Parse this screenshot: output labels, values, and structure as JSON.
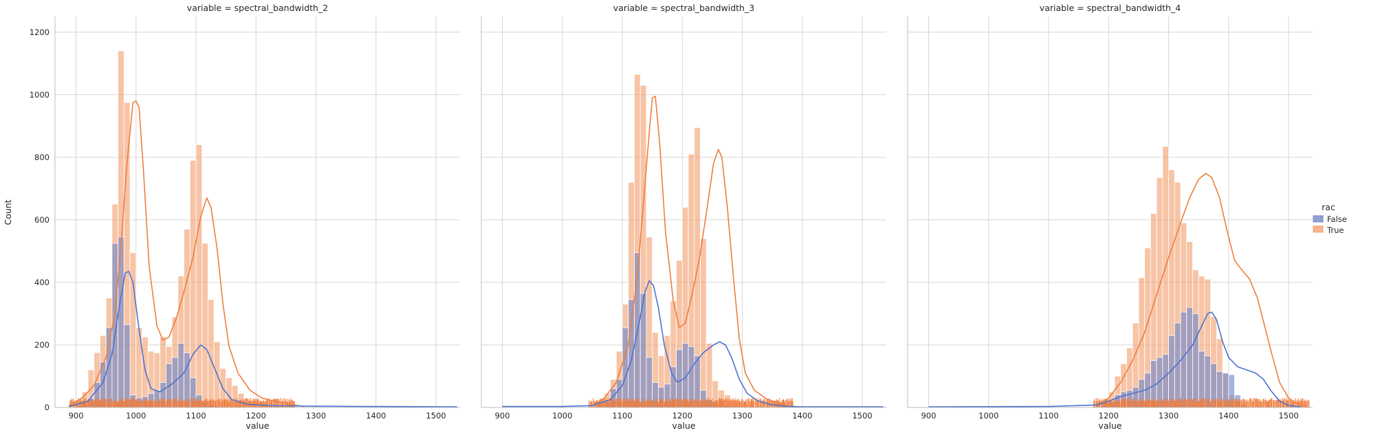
{
  "chart_data": {
    "type": "histogram",
    "y_label": "Count",
    "ylim": [
      0,
      1250
    ],
    "y_ticks": [
      0,
      200,
      400,
      600,
      800,
      1000,
      1200
    ],
    "grid": true,
    "legend": {
      "title": "rac",
      "position": "right",
      "entries": [
        {
          "label": "False",
          "color": "#4c72b0"
        },
        {
          "label": "True",
          "color": "#dd8452"
        }
      ]
    },
    "colors": {
      "False": "#6f86c8",
      "True": "#f2a06f",
      "False_line": "#4c72d0",
      "True_line": "#ee7d3e",
      "rug": "#ee7d3e"
    },
    "panels": [
      {
        "title": "variable = spectral_bandwidth_2",
        "x_label": "value",
        "xlim": [
          865,
          1540
        ],
        "x_ticks": [
          900,
          1000,
          1100,
          1200,
          1300,
          1400,
          1500
        ],
        "bin_start": 900,
        "bin_width": 10,
        "true_counts": [
          25,
          50,
          120,
          175,
          230,
          350,
          650,
          1140,
          975,
          495,
          255,
          225,
          180,
          175,
          225,
          195,
          290,
          420,
          570,
          790,
          840,
          525,
          345,
          210,
          125,
          95,
          70,
          45,
          30,
          22,
          18,
          12,
          8,
          5
        ],
        "false_counts": [
          8,
          15,
          30,
          80,
          145,
          255,
          525,
          545,
          265,
          40,
          30,
          35,
          45,
          55,
          80,
          140,
          160,
          205,
          175,
          95,
          40,
          20,
          10,
          5,
          3,
          2
        ],
        "kde_true": [
          [
            888,
            5
          ],
          [
            910,
            30
          ],
          [
            930,
            70
          ],
          [
            950,
            160
          ],
          [
            965,
            300
          ],
          [
            975,
            520
          ],
          [
            985,
            780
          ],
          [
            995,
            975
          ],
          [
            1000,
            980
          ],
          [
            1005,
            960
          ],
          [
            1012,
            770
          ],
          [
            1022,
            450
          ],
          [
            1035,
            260
          ],
          [
            1045,
            215
          ],
          [
            1055,
            225
          ],
          [
            1068,
            290
          ],
          [
            1080,
            370
          ],
          [
            1095,
            480
          ],
          [
            1108,
            610
          ],
          [
            1118,
            670
          ],
          [
            1125,
            640
          ],
          [
            1135,
            510
          ],
          [
            1145,
            330
          ],
          [
            1155,
            195
          ],
          [
            1170,
            110
          ],
          [
            1190,
            55
          ],
          [
            1210,
            30
          ],
          [
            1235,
            18
          ],
          [
            1260,
            9
          ],
          [
            1280,
            3
          ]
        ],
        "kde_false": [
          [
            888,
            3
          ],
          [
            920,
            20
          ],
          [
            945,
            80
          ],
          [
            960,
            170
          ],
          [
            972,
            320
          ],
          [
            982,
            430
          ],
          [
            988,
            435
          ],
          [
            995,
            400
          ],
          [
            1005,
            250
          ],
          [
            1015,
            120
          ],
          [
            1025,
            60
          ],
          [
            1040,
            50
          ],
          [
            1060,
            75
          ],
          [
            1080,
            110
          ],
          [
            1095,
            170
          ],
          [
            1108,
            200
          ],
          [
            1118,
            185
          ],
          [
            1130,
            130
          ],
          [
            1145,
            60
          ],
          [
            1160,
            25
          ],
          [
            1185,
            10
          ],
          [
            1220,
            6
          ],
          [
            1300,
            4
          ],
          [
            1400,
            3
          ],
          [
            1535,
            2
          ]
        ],
        "rug_range": [
          890,
          1265
        ]
      },
      {
        "title": "variable = spectral_bandwidth_3",
        "x_label": "value",
        "xlim": [
          865,
          1540
        ],
        "x_ticks": [
          900,
          1000,
          1100,
          1200,
          1300,
          1400,
          1500
        ],
        "bin_start": 1060,
        "bin_width": 10,
        "true_counts": [
          20,
          45,
          90,
          180,
          330,
          720,
          1065,
          1030,
          545,
          240,
          165,
          230,
          340,
          470,
          640,
          810,
          895,
          540,
          205,
          85,
          55,
          40,
          25,
          18,
          12,
          6
        ],
        "false_counts": [
          12,
          20,
          60,
          90,
          255,
          345,
          495,
          365,
          160,
          80,
          65,
          75,
          130,
          185,
          205,
          195,
          165,
          55,
          25,
          20,
          15,
          8,
          5
        ],
        "kde_true": [
          [
            1050,
            6
          ],
          [
            1070,
            30
          ],
          [
            1090,
            80
          ],
          [
            1110,
            200
          ],
          [
            1125,
            420
          ],
          [
            1135,
            650
          ],
          [
            1145,
            880
          ],
          [
            1150,
            990
          ],
          [
            1155,
            995
          ],
          [
            1162,
            850
          ],
          [
            1172,
            560
          ],
          [
            1185,
            340
          ],
          [
            1195,
            255
          ],
          [
            1205,
            270
          ],
          [
            1215,
            350
          ],
          [
            1228,
            470
          ],
          [
            1240,
            620
          ],
          [
            1252,
            780
          ],
          [
            1260,
            825
          ],
          [
            1266,
            800
          ],
          [
            1275,
            640
          ],
          [
            1285,
            420
          ],
          [
            1295,
            220
          ],
          [
            1305,
            110
          ],
          [
            1320,
            55
          ],
          [
            1340,
            28
          ],
          [
            1360,
            12
          ],
          [
            1375,
            4
          ]
        ],
        "kde_false": [
          [
            900,
            3
          ],
          [
            1000,
            3
          ],
          [
            1050,
            6
          ],
          [
            1080,
            25
          ],
          [
            1100,
            70
          ],
          [
            1115,
            150
          ],
          [
            1128,
            270
          ],
          [
            1138,
            370
          ],
          [
            1145,
            405
          ],
          [
            1152,
            390
          ],
          [
            1160,
            320
          ],
          [
            1170,
            200
          ],
          [
            1182,
            110
          ],
          [
            1192,
            80
          ],
          [
            1205,
            95
          ],
          [
            1220,
            140
          ],
          [
            1235,
            175
          ],
          [
            1252,
            200
          ],
          [
            1262,
            210
          ],
          [
            1272,
            200
          ],
          [
            1282,
            160
          ],
          [
            1295,
            90
          ],
          [
            1308,
            45
          ],
          [
            1325,
            22
          ],
          [
            1345,
            10
          ],
          [
            1370,
            4
          ],
          [
            1400,
            2
          ],
          [
            1535,
            2
          ]
        ],
        "rug_range": [
          1045,
          1385
        ]
      },
      {
        "title": "variable = spectral_bandwidth_4",
        "x_label": "value",
        "xlim": [
          865,
          1540
        ],
        "x_ticks": [
          900,
          1000,
          1100,
          1200,
          1300,
          1400,
          1500
        ],
        "bin_start": 1190,
        "bin_width": 10,
        "true_counts": [
          20,
          50,
          100,
          140,
          190,
          270,
          415,
          510,
          620,
          735,
          835,
          760,
          720,
          590,
          530,
          440,
          420,
          410,
          290,
          220,
          110,
          40,
          20
        ],
        "false_counts": [
          15,
          20,
          40,
          50,
          55,
          65,
          90,
          110,
          150,
          160,
          170,
          230,
          270,
          305,
          320,
          300,
          180,
          165,
          140,
          115,
          110,
          105,
          40,
          10
        ],
        "kde_true": [
          [
            1180,
            8
          ],
          [
            1200,
            30
          ],
          [
            1220,
            80
          ],
          [
            1240,
            150
          ],
          [
            1260,
            240
          ],
          [
            1280,
            360
          ],
          [
            1300,
            480
          ],
          [
            1320,
            590
          ],
          [
            1335,
            670
          ],
          [
            1350,
            730
          ],
          [
            1362,
            748
          ],
          [
            1372,
            735
          ],
          [
            1385,
            670
          ],
          [
            1398,
            560
          ],
          [
            1410,
            470
          ],
          [
            1422,
            440
          ],
          [
            1435,
            410
          ],
          [
            1448,
            350
          ],
          [
            1460,
            260
          ],
          [
            1472,
            170
          ],
          [
            1485,
            80
          ],
          [
            1500,
            30
          ],
          [
            1515,
            10
          ],
          [
            1530,
            3
          ]
        ],
        "kde_false": [
          [
            900,
            2
          ],
          [
            1100,
            3
          ],
          [
            1180,
            8
          ],
          [
            1200,
            20
          ],
          [
            1220,
            35
          ],
          [
            1240,
            45
          ],
          [
            1260,
            55
          ],
          [
            1280,
            75
          ],
          [
            1300,
            110
          ],
          [
            1320,
            150
          ],
          [
            1340,
            200
          ],
          [
            1355,
            260
          ],
          [
            1365,
            300
          ],
          [
            1372,
            305
          ],
          [
            1380,
            280
          ],
          [
            1390,
            210
          ],
          [
            1400,
            160
          ],
          [
            1415,
            130
          ],
          [
            1430,
            120
          ],
          [
            1445,
            110
          ],
          [
            1458,
            90
          ],
          [
            1470,
            55
          ],
          [
            1485,
            20
          ],
          [
            1500,
            6
          ],
          [
            1520,
            2
          ]
        ],
        "rug_range": [
          1175,
          1535
        ]
      }
    ]
  }
}
